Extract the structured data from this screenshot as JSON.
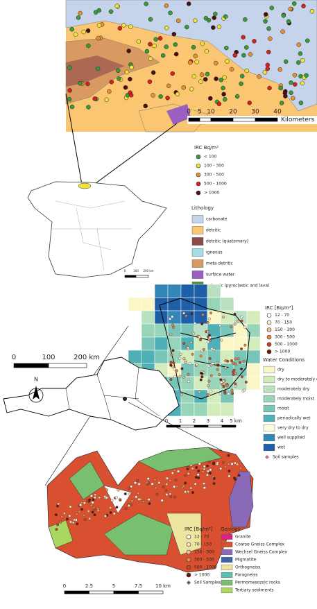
{
  "spain_map": {
    "scale_labels": [
      "0",
      "5",
      "10",
      "20",
      "30",
      "40"
    ],
    "scale_unit": "Kilometers",
    "irc_legend": {
      "title": "IRC Bq/m³",
      "items": [
        {
          "label": "< 100",
          "color": "#3a9a3a"
        },
        {
          "label": "100 - 300",
          "color": "#f3e23a"
        },
        {
          "label": "300 - 500",
          "color": "#e89030"
        },
        {
          "label": "500 - 1000",
          "color": "#d62020"
        },
        {
          "label": "> 1000",
          "color": "#4a1010"
        }
      ]
    },
    "lithology_legend": {
      "title": "Lithology",
      "items": [
        {
          "label": "carbonate",
          "color": "#c5d4ea"
        },
        {
          "label": "detritic",
          "color": "#fac672"
        },
        {
          "label": "detritic (quaternary)",
          "color": "#8c4a4a"
        },
        {
          "label": "igneous",
          "color": "#a6dce8"
        },
        {
          "label": "meta detritic",
          "color": "#d99a62"
        },
        {
          "label": "surface water",
          "color": "#9b5fc0"
        },
        {
          "label": "volcanic (pyroclastic and lava)",
          "color": "#4f8f3a"
        }
      ]
    },
    "overview_scale_labels": [
      "0",
      "100",
      "200 km"
    ]
  },
  "austria_map": {
    "scale_labels": [
      "0",
      "100",
      "200 km"
    ],
    "north": "N",
    "irc_legend": {
      "title": "IRC [Bq/m³]",
      "items": [
        {
          "label": "12 - 70",
          "color": "#ffffff"
        },
        {
          "label": "70 - 150",
          "color": "#fde6c8"
        },
        {
          "label": "150 - 300",
          "color": "#f8c090"
        },
        {
          "label": "300 - 500",
          "color": "#e88848"
        },
        {
          "label": "500 - 1000",
          "color": "#c04820"
        },
        {
          "label": "> 1000",
          "color": "#6a1a08"
        }
      ]
    },
    "water_legend": {
      "title": "Water Conditions",
      "items": [
        {
          "label": "dry",
          "color": "#fbf6c6"
        },
        {
          "label": "dry to moderately dry",
          "color": "#d4ecbc"
        },
        {
          "label": "moderately dry",
          "color": "#b9e0c0"
        },
        {
          "label": "moderately moist",
          "color": "#98d4b8"
        },
        {
          "label": "moist",
          "color": "#79c6b8"
        },
        {
          "label": "periodically wet",
          "color": "#4fb0b8"
        },
        {
          "label": "very dry to dry",
          "color": "#fffbe0"
        },
        {
          "label": "well supplied",
          "color": "#3486b8"
        },
        {
          "label": "wet",
          "color": "#1f5fa8"
        }
      ]
    },
    "soil_samples": {
      "label": "Soil samples",
      "color": "#c070a0"
    },
    "detail_scale_labels": [
      "0",
      "1",
      "2",
      "3",
      "4",
      "5 km"
    ]
  },
  "geology_map": {
    "irc_legend": {
      "title": "IRC [Bq/m³]",
      "items": [
        {
          "label": "12 - 70",
          "color": "#ffffff"
        },
        {
          "label": "70 - 150",
          "color": "#fde6c8"
        },
        {
          "label": "150 - 300",
          "color": "#f8c090"
        },
        {
          "label": "300 - 500",
          "color": "#e88848"
        },
        {
          "label": "500 - 1000",
          "color": "#c04820"
        },
        {
          "label": "> 1000",
          "color": "#6a1a08"
        }
      ]
    },
    "soil_samples": {
      "label": "Soil Samples",
      "color": "#7a4a8a"
    },
    "geology_legend": {
      "title": "Geology",
      "items": [
        {
          "label": "Granite",
          "color": "#e0208a"
        },
        {
          "label": "Coarse Gneiss Complex",
          "color": "#d85030"
        },
        {
          "label": "Wechsel Gneiss Complex",
          "color": "#8a6ab8"
        },
        {
          "label": "Migmatite",
          "color": "#4060a8"
        },
        {
          "label": "Orthogneiss",
          "color": "#ede4a0"
        },
        {
          "label": "Paragneiss",
          "color": "#5ac0b0"
        },
        {
          "label": "Permomesozoic rocks",
          "color": "#78c070"
        },
        {
          "label": "Tertiary sediments",
          "color": "#a8d860"
        }
      ]
    },
    "scale_labels": [
      "0",
      "2.5",
      "5",
      "7.5",
      "10 km"
    ]
  }
}
